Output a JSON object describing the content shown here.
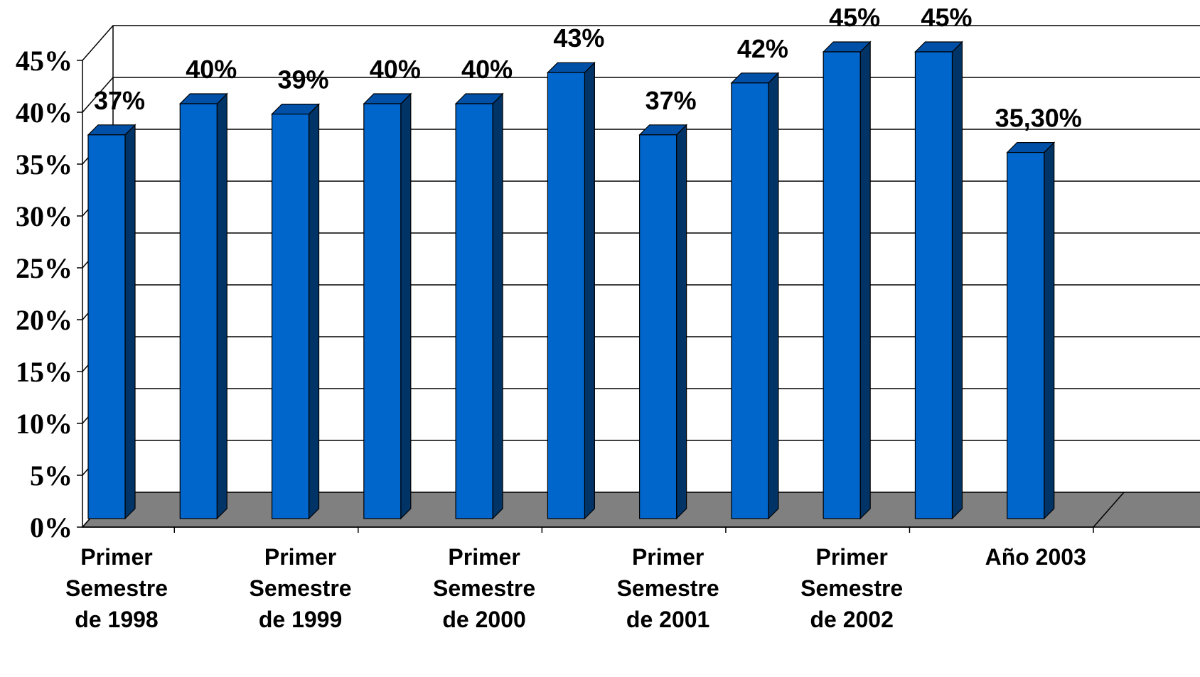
{
  "chart_data": {
    "type": "bar",
    "three_d": true,
    "title": "",
    "xlabel": "",
    "ylabel": "",
    "ylim": [
      0,
      45
    ],
    "y_tick_step": 5,
    "y_tick_labels": [
      "0%",
      "5%",
      "10%",
      "15%",
      "20%",
      "25%",
      "30%",
      "35%",
      "40%",
      "45%"
    ],
    "grid": true,
    "legend": "none",
    "values": [
      37,
      40,
      39,
      40,
      40,
      43,
      37,
      42,
      45,
      45,
      35.3
    ],
    "data_labels": [
      "37%",
      "40%",
      "39%",
      "40%",
      "40%",
      "43%",
      "37%",
      "42%",
      "45%",
      "45%",
      "35,30%"
    ],
    "category_labels": [
      {
        "slot": 0,
        "lines": [
          "Primer",
          "Semestre",
          "de 1998"
        ]
      },
      {
        "slot": 2,
        "lines": [
          "Primer",
          "Semestre",
          "de 1999"
        ]
      },
      {
        "slot": 4,
        "lines": [
          "Primer",
          "Semestre",
          "de 2000"
        ]
      },
      {
        "slot": 6,
        "lines": [
          "Primer",
          "Semestre",
          "de 2001"
        ]
      },
      {
        "slot": 8,
        "lines": [
          "Primer",
          "Semestre",
          "de 2002"
        ]
      },
      {
        "slot": 10,
        "lines": [
          "Año 2003"
        ]
      }
    ],
    "colors": {
      "bar_front": "#0066CC",
      "bar_side": "#003366",
      "bar_top": "#0050A8",
      "floor": "#808080",
      "grid": "#000000"
    }
  }
}
